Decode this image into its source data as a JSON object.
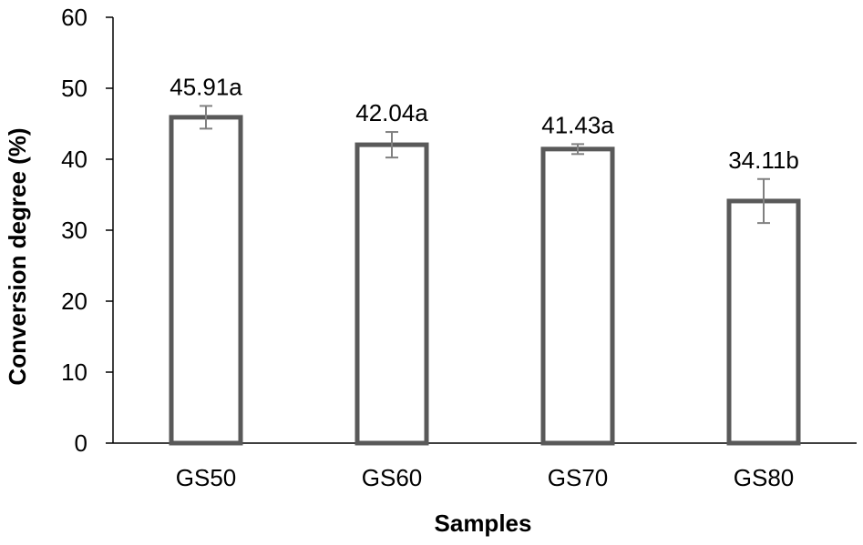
{
  "chart_data": {
    "type": "bar",
    "title": "",
    "xlabel": "Samples",
    "ylabel": "Conversion degree (%)",
    "ylim": [
      0,
      60
    ],
    "y_ticks": [
      "0",
      "10",
      "20",
      "30",
      "40",
      "50",
      "60"
    ],
    "categories": [
      "GS50",
      "GS60",
      "GS70",
      "GS80"
    ],
    "values": [
      45.91,
      42.04,
      41.43,
      34.11
    ],
    "error": [
      1.6,
      1.8,
      0.7,
      3.1
    ],
    "data_labels": [
      "45.91a",
      "42.04a",
      "41.43a",
      "34.11b"
    ],
    "grid": false,
    "legend": "none",
    "colors": {
      "bar_outline": "#595959",
      "bar_fill": "#ffffff",
      "error_bar": "#808080",
      "axis": "#000000"
    }
  }
}
